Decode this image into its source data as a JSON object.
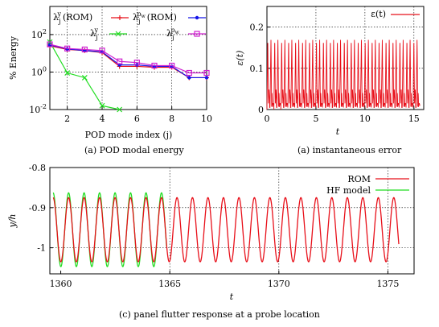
{
  "captions": {
    "a1": "(a) POD modal energy",
    "a2": "(a) instantaneous error",
    "c": "(c) panel flutter response at a probe location"
  },
  "chart_data": [
    {
      "id": "pod",
      "type": "line",
      "xlabel": "POD mode index (j)",
      "ylabel": "% Energy",
      "xlim": [
        1,
        10
      ],
      "ylim_log10": [
        -2,
        3.5
      ],
      "yscale": "log",
      "xticks": [
        "2",
        "4",
        "6",
        "8",
        "10"
      ],
      "yticks": [
        "10^-2",
        "10^0",
        "10^2"
      ],
      "grid": "dotted at major ticks",
      "legend": "top, two columns",
      "series": [
        {
          "name": "λ_j^y (ROM)",
          "color": "#e8101a",
          "marker": "plus",
          "x": [
            1,
            2,
            3,
            4,
            5,
            6,
            7,
            8,
            9,
            10
          ],
          "y": [
            25,
            16,
            14,
            11,
            2.0,
            2.0,
            1.8,
            1.8,
            0.5,
            0.5
          ]
        },
        {
          "name": "λ_j^y",
          "color": "#22dd22",
          "marker": "x",
          "x": [
            1,
            2,
            3,
            4,
            5
          ],
          "y": [
            40,
            0.9,
            0.5,
            0.016,
            0.01
          ]
        },
        {
          "name": "λ_j^{p_w} (ROM)",
          "color": "#1515e8",
          "marker": "star",
          "x": [
            1,
            2,
            3,
            4,
            5,
            6,
            7,
            8,
            9,
            10
          ],
          "y": [
            28,
            17,
            14,
            12,
            2.4,
            2.4,
            2.0,
            2.0,
            0.5,
            0.5
          ]
        },
        {
          "name": "λ_j^{p_w}",
          "color": "#d020d0",
          "marker": "square",
          "x": [
            1,
            2,
            3,
            4,
            5,
            6,
            7,
            8,
            9,
            10
          ],
          "y": [
            30,
            18,
            16,
            14,
            3.7,
            3.2,
            2.2,
            2.2,
            0.9,
            0.9
          ]
        }
      ]
    },
    {
      "id": "err",
      "type": "line",
      "xlabel": "t",
      "ylabel": "ε(t)",
      "xlim": [
        0,
        16
      ],
      "ylim": [
        0,
        0.25
      ],
      "xticks": [
        0,
        5,
        10,
        15
      ],
      "yticks": [
        0,
        0.1,
        0.2
      ],
      "ytick_labels": [
        "0",
        "0.1",
        "0.2"
      ],
      "grid": "dotted at major ticks",
      "legend": "top-right",
      "series": [
        {
          "name": "ε(t)",
          "color": "#e8101a",
          "period": 0.71,
          "peak": 0.172,
          "floor": 0.02,
          "t_end": 15.6
        }
      ]
    },
    {
      "id": "flutter",
      "type": "line",
      "xlabel": "t",
      "ylabel": "y/h",
      "xlim": [
        1359.5,
        1376.2
      ],
      "ylim": [
        -1.065,
        -0.8
      ],
      "xticks": [
        1360,
        1365,
        1370,
        1375
      ],
      "yticks": [
        -0.8,
        -0.9,
        -1
      ],
      "ytick_labels": [
        "-0.8",
        "-0.9",
        "-1"
      ],
      "grid": "dotted at major ticks",
      "legend": "top-right",
      "series": [
        {
          "name": "ROM",
          "color": "#e8101a",
          "t_start": 1359.65,
          "t_end": 1375.5,
          "period": 0.71,
          "center": -0.955,
          "amp": 0.08
        },
        {
          "name": "HF model",
          "color": "#22dd22",
          "t_start": 1359.65,
          "t_end": 1364.85,
          "period": 0.71,
          "center": -0.955,
          "amp": 0.092
        }
      ]
    }
  ]
}
